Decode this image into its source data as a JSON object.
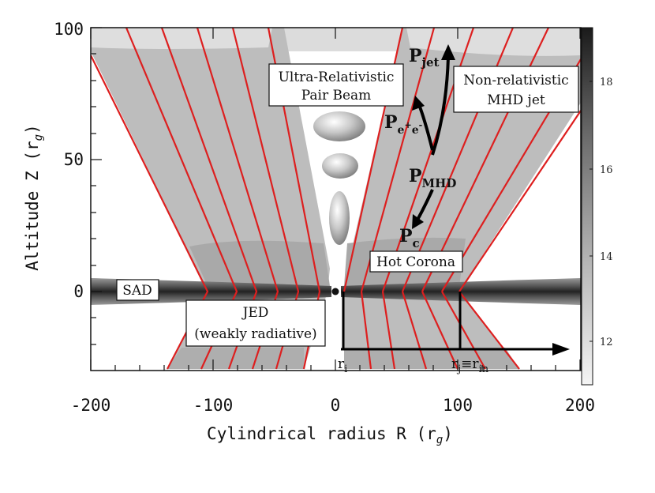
{
  "axes": {
    "xlabel": "Cylindrical radius R (r",
    "xlabel_sub": "g",
    "xlabel_close": ")",
    "ylabel": "Altitude Z (r",
    "ylabel_sub": "g",
    "ylabel_close": ")",
    "xlim": [
      -200,
      200
    ],
    "ylim": [
      -35,
      100
    ],
    "xticks": [
      "-200",
      "-100",
      "0",
      "100",
      "200"
    ],
    "yticks": [
      "0",
      "50",
      "100"
    ]
  },
  "colorbar": {
    "ticks": [
      "12",
      "14",
      "16",
      "18"
    ],
    "range": [
      11,
      19.3
    ]
  },
  "labels": {
    "pair_beam": [
      "Ultra-Relativistic",
      "Pair Beam"
    ],
    "mhd_jet": [
      "Non-relativistic",
      "MHD jet"
    ],
    "sad": "SAD",
    "jed": [
      "JED",
      "(weakly radiative)"
    ],
    "hot_corona": "Hot Corona"
  },
  "symbols": {
    "p_jet": {
      "main": "P",
      "sub": "jet"
    },
    "p_ee": {
      "main": "P",
      "sub": "e",
      "sup1": "+",
      "mid": "e",
      "sup2": "-"
    },
    "p_mhd": {
      "main": "P",
      "sub": "MHD"
    },
    "p_c": {
      "main": "P",
      "sub": "c"
    },
    "r_i": {
      "main": "r",
      "sub": "i"
    },
    "r_j": {
      "main": "r",
      "sub": "j",
      "eq": "≡",
      "main2": "r",
      "sub2": "in"
    }
  },
  "structure": {
    "r_i": 0,
    "r_j": 90,
    "field_line_feet_right": [
      0,
      15,
      30,
      45,
      60,
      75,
      90
    ],
    "field_line_feet_left": [
      -10,
      -25,
      -45,
      -65,
      -85,
      -105
    ]
  },
  "colors": {
    "field_line": "#dd1f1f",
    "jet_gray": "#bdbdbd",
    "light_gray": "#d8d8d8",
    "dark_gray": "#a8a8a8",
    "disk_dark": "#2a2a2a"
  }
}
